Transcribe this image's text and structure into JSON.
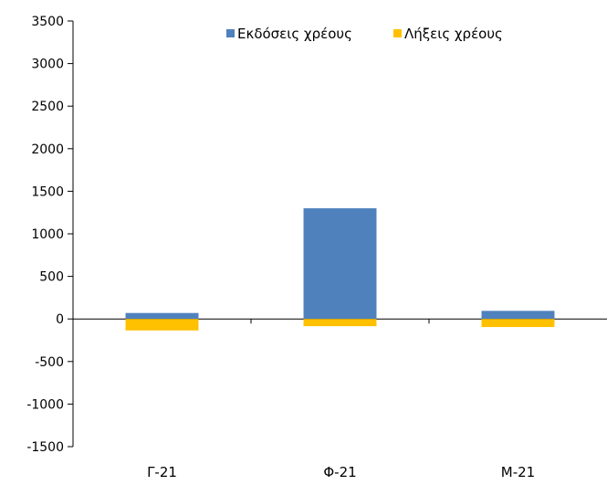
{
  "chart_data": {
    "type": "bar",
    "stacked": true,
    "categories": [
      "Γ-21",
      "Φ-21",
      "Μ-21"
    ],
    "series": [
      {
        "name": "Εκδόσεις χρέους",
        "color": "#4f81bd",
        "values": [
          70,
          1300,
          95
        ]
      },
      {
        "name": "Λήξεις χρέους",
        "color": "#ffc000",
        "values": [
          -135,
          -85,
          -95
        ]
      }
    ],
    "ylim": [
      -1500,
      3500
    ],
    "yticks": [
      3500,
      3000,
      2500,
      2000,
      1500,
      1000,
      500,
      0,
      -500,
      -1000,
      -1500
    ],
    "xlabel": "",
    "ylabel": "",
    "grid": false,
    "legend_position": "top"
  }
}
